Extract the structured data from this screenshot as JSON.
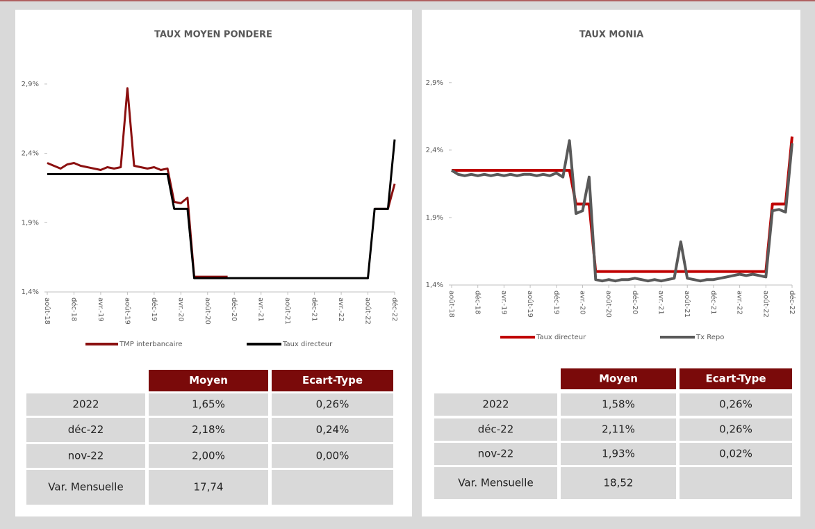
{
  "chart_data": [
    {
      "type": "line",
      "title": "TAUX MOYEN PONDERE",
      "categories": [
        "août-18",
        null,
        null,
        null,
        "déc-18",
        null,
        null,
        null,
        "avr.-19",
        null,
        null,
        null,
        "août-19",
        null,
        null,
        null,
        "déc-19",
        null,
        null,
        null,
        "avr.-20",
        null,
        null,
        null,
        "août-20",
        null,
        null,
        null,
        "déc-20",
        null,
        null,
        null,
        "avr.-21",
        null,
        null,
        null,
        "août-21",
        null,
        null,
        null,
        "déc-21",
        null,
        null,
        null,
        "avr.-22",
        null,
        null,
        null,
        "août-22",
        null,
        null,
        null,
        "déc-22"
      ],
      "series": [
        {
          "name": "TMP interbancaire",
          "color": "#8b1010",
          "values": [
            2.33,
            2.31,
            2.29,
            2.32,
            2.33,
            2.31,
            2.3,
            2.29,
            2.28,
            2.3,
            2.29,
            2.3,
            2.87,
            2.31,
            2.3,
            2.29,
            2.3,
            2.28,
            2.29,
            2.05,
            2.04,
            2.08,
            1.51,
            1.51,
            1.51,
            1.51,
            1.51,
            1.51,
            null,
            null,
            null,
            null,
            null,
            null,
            null,
            null,
            null,
            null,
            null,
            null,
            null,
            null,
            null,
            null,
            null,
            null,
            null,
            null,
            null,
            2.0,
            2.0,
            2.0,
            2.18
          ]
        },
        {
          "name": "Taux directeur",
          "color": "#000000",
          "values": [
            2.25,
            2.25,
            2.25,
            2.25,
            2.25,
            2.25,
            2.25,
            2.25,
            2.25,
            2.25,
            2.25,
            2.25,
            2.25,
            2.25,
            2.25,
            2.25,
            2.25,
            2.25,
            2.25,
            2.0,
            2.0,
            2.0,
            1.5,
            1.5,
            1.5,
            1.5,
            1.5,
            1.5,
            1.5,
            1.5,
            1.5,
            1.5,
            1.5,
            1.5,
            1.5,
            1.5,
            1.5,
            1.5,
            1.5,
            1.5,
            1.5,
            1.5,
            1.5,
            1.5,
            1.5,
            1.5,
            1.5,
            1.5,
            1.5,
            2.0,
            2.0,
            2.0,
            2.5
          ]
        }
      ],
      "ylim": [
        1.4,
        3.1
      ],
      "yticks": [
        {
          "value": 1.4,
          "label": "1,4%"
        },
        {
          "value": 1.9,
          "label": "1,9%"
        },
        {
          "value": 2.4,
          "label": "2,4%"
        },
        {
          "value": 2.9,
          "label": "2,9%"
        }
      ]
    },
    {
      "type": "line",
      "title": "TAUX MONIA",
      "categories": [
        "août-18",
        null,
        null,
        null,
        "déc-18",
        null,
        null,
        null,
        "avr.-19",
        null,
        null,
        null,
        "août-19",
        null,
        null,
        null,
        "déc-19",
        null,
        null,
        null,
        "avr.-20",
        null,
        null,
        null,
        "août-20",
        null,
        null,
        null,
        "déc-20",
        null,
        null,
        null,
        "avr.-21",
        null,
        null,
        null,
        "août-21",
        null,
        null,
        null,
        "déc-21",
        null,
        null,
        null,
        "avr.-22",
        null,
        null,
        null,
        "août-22",
        null,
        null,
        null,
        "déc-22"
      ],
      "series": [
        {
          "name": "Taux directeur",
          "color": "#c00000",
          "values": [
            2.25,
            2.25,
            2.25,
            2.25,
            2.25,
            2.25,
            2.25,
            2.25,
            2.25,
            2.25,
            2.25,
            2.25,
            2.25,
            2.25,
            2.25,
            2.25,
            2.25,
            2.25,
            2.25,
            2.0,
            2.0,
            2.0,
            1.5,
            1.5,
            1.5,
            1.5,
            1.5,
            1.5,
            1.5,
            1.5,
            1.5,
            1.5,
            1.5,
            1.5,
            1.5,
            1.5,
            1.5,
            1.5,
            1.5,
            1.5,
            1.5,
            1.5,
            1.5,
            1.5,
            1.5,
            1.5,
            1.5,
            1.5,
            1.5,
            2.0,
            2.0,
            2.0,
            2.5
          ]
        },
        {
          "name": "Tx Repo",
          "color": "#595959",
          "values": [
            2.25,
            2.22,
            2.21,
            2.22,
            2.21,
            2.22,
            2.21,
            2.22,
            2.21,
            2.22,
            2.21,
            2.22,
            2.22,
            2.21,
            2.22,
            2.21,
            2.23,
            2.2,
            2.47,
            1.93,
            1.95,
            2.2,
            1.44,
            1.43,
            1.44,
            1.43,
            1.44,
            1.44,
            1.45,
            1.44,
            1.43,
            1.44,
            1.43,
            1.44,
            1.45,
            1.72,
            1.45,
            1.44,
            1.43,
            1.44,
            1.44,
            1.45,
            1.46,
            1.47,
            1.48,
            1.47,
            1.48,
            1.47,
            1.46,
            1.95,
            1.96,
            1.94,
            2.45
          ]
        }
      ],
      "ylim": [
        1.4,
        3.1
      ],
      "yticks": [
        {
          "value": 1.4,
          "label": "1,4%"
        },
        {
          "value": 1.9,
          "label": "1,9%"
        },
        {
          "value": 2.4,
          "label": "2,4%"
        },
        {
          "value": 2.9,
          "label": "2,9%"
        }
      ]
    }
  ],
  "tables": [
    {
      "header": [
        "Moyen",
        "Ecart-Type"
      ],
      "rows": [
        [
          "2022",
          "1,65%",
          "0,26%"
        ],
        [
          "déc-22",
          "2,18%",
          "0,24%"
        ],
        [
          "nov-22",
          "2,00%",
          "0,00%"
        ],
        [
          "Var. Mensuelle",
          "17,74"
        ]
      ]
    },
    {
      "header": [
        "Moyen",
        "Ecart-Type"
      ],
      "rows": [
        [
          "2022",
          "1,58%",
          "0,26%"
        ],
        [
          "déc-22",
          "2,11%",
          "0,26%"
        ],
        [
          "nov-22",
          "1,93%",
          "0,02%"
        ],
        [
          "Var. Mensuelle",
          "18,52"
        ]
      ]
    }
  ]
}
